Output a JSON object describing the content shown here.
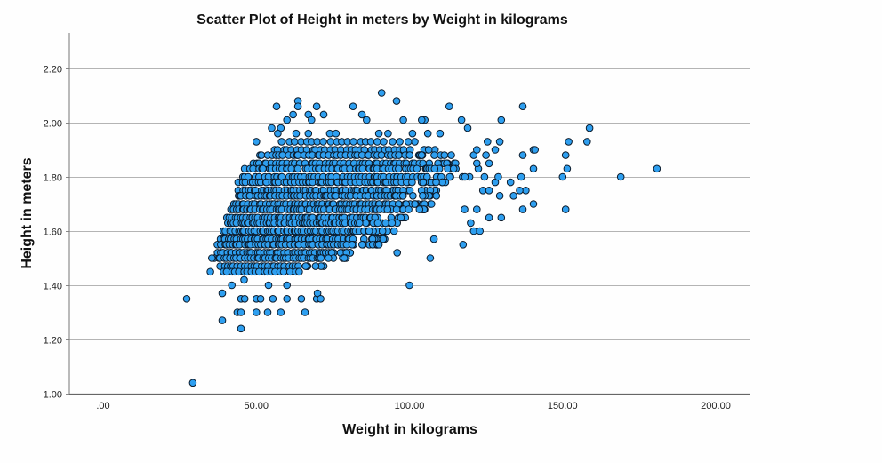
{
  "chart_data": {
    "type": "scatter",
    "title": "Scatter Plot of Height in meters by Weight in kilograms",
    "xlabel": "Weight in kilograms",
    "ylabel": "Height in meters",
    "xlim": [
      -5,
      212
    ],
    "ylim": [
      1.0,
      2.33
    ],
    "x_ticks": [
      0,
      50,
      100,
      150,
      200
    ],
    "x_tick_labels": [
      ".00",
      "50.00",
      "100.00",
      "150.00",
      "200.00"
    ],
    "y_ticks": [
      1.0,
      1.2,
      1.4,
      1.6,
      1.8,
      2.0,
      2.2
    ],
    "y_tick_labels": [
      "1.00",
      "1.20",
      "1.40",
      "1.60",
      "1.80",
      "2.00",
      "2.20"
    ],
    "grid": "horizontal",
    "legend": "none",
    "marker": {
      "shape": "circle",
      "fill": "#2e9ff0",
      "edge": "#0b1a2a",
      "radius": 3.8
    },
    "dense_bands": [
      {
        "h": 1.93,
        "w": [
          58,
          102
        ],
        "n": 22
      },
      {
        "h": 1.9,
        "w": [
          55,
          110
        ],
        "n": 34
      },
      {
        "h": 1.88,
        "w": [
          50,
          114
        ],
        "n": 46
      },
      {
        "h": 1.85,
        "w": [
          48,
          118
        ],
        "n": 55
      },
      {
        "h": 1.83,
        "w": [
          46,
          118
        ],
        "n": 60
      },
      {
        "h": 1.8,
        "w": [
          45,
          120
        ],
        "n": 66
      },
      {
        "h": 1.78,
        "w": [
          44,
          112
        ],
        "n": 66
      },
      {
        "h": 1.75,
        "w": [
          44,
          110
        ],
        "n": 68
      },
      {
        "h": 1.73,
        "w": [
          43,
          110
        ],
        "n": 68
      },
      {
        "h": 1.7,
        "w": [
          42,
          108
        ],
        "n": 70
      },
      {
        "h": 1.68,
        "w": [
          41,
          106
        ],
        "n": 70
      },
      {
        "h": 1.65,
        "w": [
          40,
          100
        ],
        "n": 68
      },
      {
        "h": 1.63,
        "w": [
          40,
          96
        ],
        "n": 66
      },
      {
        "h": 1.6,
        "w": [
          39,
          96
        ],
        "n": 64
      },
      {
        "h": 1.57,
        "w": [
          38,
          92
        ],
        "n": 60
      },
      {
        "h": 1.55,
        "w": [
          37,
          90
        ],
        "n": 56
      },
      {
        "h": 1.52,
        "w": [
          37,
          85
        ],
        "n": 50
      },
      {
        "h": 1.5,
        "w": [
          36,
          80
        ],
        "n": 44
      },
      {
        "h": 1.47,
        "w": [
          38,
          72
        ],
        "n": 30
      },
      {
        "h": 1.45,
        "w": [
          39,
          66
        ],
        "n": 20
      }
    ],
    "points": [
      {
        "x": 29.3,
        "y": 1.04
      },
      {
        "x": 27.3,
        "y": 1.35
      },
      {
        "x": 38.9,
        "y": 1.27
      },
      {
        "x": 45.0,
        "y": 1.24
      },
      {
        "x": 38.9,
        "y": 1.37
      },
      {
        "x": 45.0,
        "y": 1.35
      },
      {
        "x": 46.2,
        "y": 1.35
      },
      {
        "x": 50.0,
        "y": 1.35
      },
      {
        "x": 51.4,
        "y": 1.35
      },
      {
        "x": 55.4,
        "y": 1.35
      },
      {
        "x": 60.0,
        "y": 1.35
      },
      {
        "x": 64.7,
        "y": 1.35
      },
      {
        "x": 69.7,
        "y": 1.35
      },
      {
        "x": 70.0,
        "y": 1.37
      },
      {
        "x": 71.0,
        "y": 1.35
      },
      {
        "x": 43.8,
        "y": 1.3
      },
      {
        "x": 45.0,
        "y": 1.3
      },
      {
        "x": 50.0,
        "y": 1.3
      },
      {
        "x": 53.7,
        "y": 1.3
      },
      {
        "x": 58.0,
        "y": 1.3
      },
      {
        "x": 65.9,
        "y": 1.3
      },
      {
        "x": 42.0,
        "y": 1.4
      },
      {
        "x": 46.0,
        "y": 1.42
      },
      {
        "x": 54.0,
        "y": 1.4
      },
      {
        "x": 60.0,
        "y": 1.4
      },
      {
        "x": 35.0,
        "y": 1.45
      },
      {
        "x": 35.5,
        "y": 1.5
      },
      {
        "x": 100.0,
        "y": 1.4
      },
      {
        "x": 106.8,
        "y": 1.5
      },
      {
        "x": 96.0,
        "y": 1.52
      },
      {
        "x": 90.0,
        "y": 1.55
      },
      {
        "x": 117.5,
        "y": 1.55
      },
      {
        "x": 121.0,
        "y": 1.6
      },
      {
        "x": 123.0,
        "y": 1.6
      },
      {
        "x": 108.0,
        "y": 1.57
      },
      {
        "x": 120.0,
        "y": 1.63
      },
      {
        "x": 126.0,
        "y": 1.65
      },
      {
        "x": 130.0,
        "y": 1.65
      },
      {
        "x": 118.0,
        "y": 1.68
      },
      {
        "x": 122.0,
        "y": 1.68
      },
      {
        "x": 137.0,
        "y": 1.68
      },
      {
        "x": 140.5,
        "y": 1.7
      },
      {
        "x": 129.5,
        "y": 1.73
      },
      {
        "x": 134.0,
        "y": 1.73
      },
      {
        "x": 138.0,
        "y": 1.75
      },
      {
        "x": 124.0,
        "y": 1.75
      },
      {
        "x": 126.0,
        "y": 1.75
      },
      {
        "x": 136.0,
        "y": 1.75
      },
      {
        "x": 128.0,
        "y": 1.78
      },
      {
        "x": 133.0,
        "y": 1.78
      },
      {
        "x": 136.5,
        "y": 1.8
      },
      {
        "x": 124.5,
        "y": 1.8
      },
      {
        "x": 129.0,
        "y": 1.8
      },
      {
        "x": 140.5,
        "y": 1.83
      },
      {
        "x": 122.5,
        "y": 1.83
      },
      {
        "x": 126.0,
        "y": 1.85
      },
      {
        "x": 122.0,
        "y": 1.85
      },
      {
        "x": 137.0,
        "y": 1.88
      },
      {
        "x": 140.5,
        "y": 1.9
      },
      {
        "x": 121.0,
        "y": 1.88
      },
      {
        "x": 125.0,
        "y": 1.88
      },
      {
        "x": 128.0,
        "y": 1.9
      },
      {
        "x": 122.0,
        "y": 1.9
      },
      {
        "x": 129.5,
        "y": 1.93
      },
      {
        "x": 125.5,
        "y": 1.93
      },
      {
        "x": 130.0,
        "y": 2.01
      },
      {
        "x": 119.0,
        "y": 1.98
      },
      {
        "x": 117.0,
        "y": 2.01
      },
      {
        "x": 113.0,
        "y": 2.06
      },
      {
        "x": 137.0,
        "y": 2.06
      },
      {
        "x": 105.0,
        "y": 2.01
      },
      {
        "x": 104.0,
        "y": 2.01
      },
      {
        "x": 98.0,
        "y": 2.01
      },
      {
        "x": 90.9,
        "y": 2.11
      },
      {
        "x": 95.8,
        "y": 2.08
      },
      {
        "x": 86.0,
        "y": 2.01
      },
      {
        "x": 81.6,
        "y": 2.06
      },
      {
        "x": 84.5,
        "y": 2.03
      },
      {
        "x": 63.6,
        "y": 2.08
      },
      {
        "x": 63.6,
        "y": 2.06
      },
      {
        "x": 56.6,
        "y": 2.06
      },
      {
        "x": 69.7,
        "y": 2.06
      },
      {
        "x": 60.0,
        "y": 2.01
      },
      {
        "x": 62.0,
        "y": 2.03
      },
      {
        "x": 67.0,
        "y": 2.03
      },
      {
        "x": 68.0,
        "y": 2.01
      },
      {
        "x": 72.0,
        "y": 2.03
      },
      {
        "x": 58.0,
        "y": 1.98
      },
      {
        "x": 55.0,
        "y": 1.98
      },
      {
        "x": 50.0,
        "y": 1.93
      },
      {
        "x": 57.0,
        "y": 1.96
      },
      {
        "x": 63.0,
        "y": 1.96
      },
      {
        "x": 67.0,
        "y": 1.96
      },
      {
        "x": 74.0,
        "y": 1.96
      },
      {
        "x": 76.0,
        "y": 1.96
      },
      {
        "x": 90.0,
        "y": 1.96
      },
      {
        "x": 93.0,
        "y": 1.96
      },
      {
        "x": 101.0,
        "y": 1.96
      },
      {
        "x": 106.0,
        "y": 1.96
      },
      {
        "x": 110.0,
        "y": 1.96
      },
      {
        "x": 158.8,
        "y": 1.98
      },
      {
        "x": 158.0,
        "y": 1.93
      },
      {
        "x": 152.0,
        "y": 1.93
      },
      {
        "x": 151.0,
        "y": 1.88
      },
      {
        "x": 151.5,
        "y": 1.83
      },
      {
        "x": 150.0,
        "y": 1.8
      },
      {
        "x": 169.0,
        "y": 1.8
      },
      {
        "x": 151.0,
        "y": 1.68
      },
      {
        "x": 180.8,
        "y": 1.83
      },
      {
        "x": 141.0,
        "y": 1.9
      }
    ]
  }
}
